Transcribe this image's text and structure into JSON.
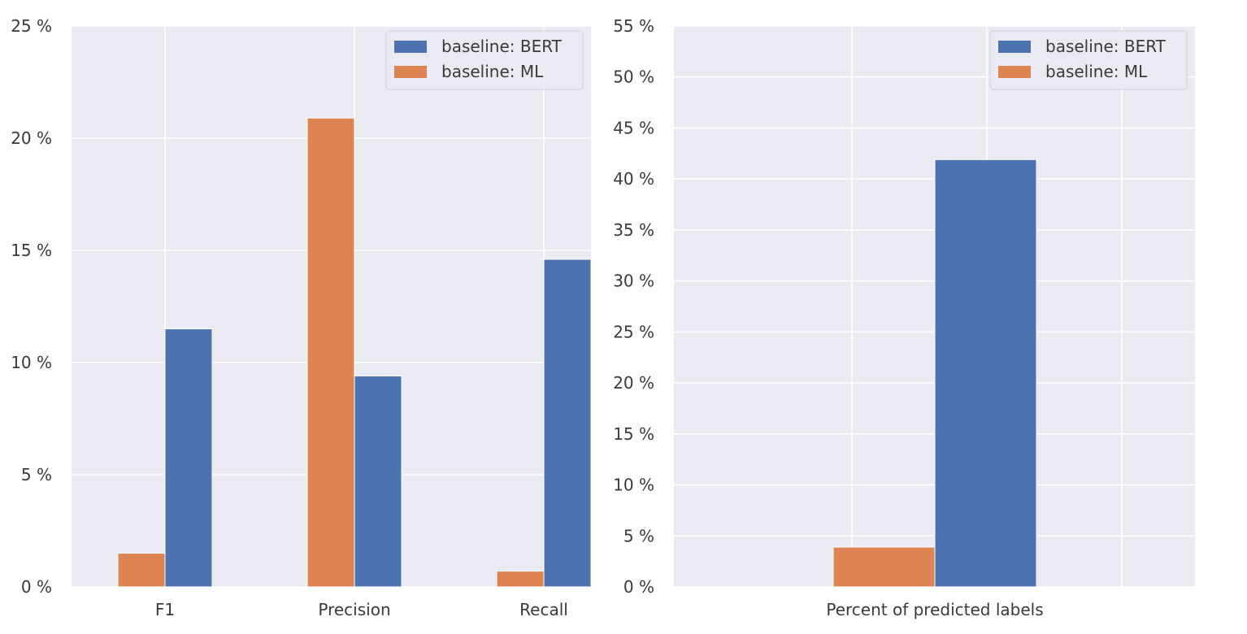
{
  "chart_data": [
    {
      "type": "bar",
      "title": "",
      "xlabel": "",
      "ylabel": "",
      "categories": [
        "F1",
        "Precision",
        "Recall"
      ],
      "series": [
        {
          "name": "baseline: ML",
          "color": "#dd8452",
          "values": [
            1.5,
            20.9,
            0.7
          ]
        },
        {
          "name": "baseline: BERT",
          "color": "#4c72b0",
          "values": [
            11.5,
            9.4,
            14.6
          ]
        }
      ],
      "legend_order": [
        "baseline: BERT",
        "baseline: ML"
      ],
      "ylim": [
        0,
        25
      ],
      "yticks": [
        0,
        5,
        10,
        15,
        20,
        25
      ],
      "ytick_labels": [
        "0 %",
        "5 %",
        "10 %",
        "15 %",
        "20 %",
        "25 %"
      ],
      "grid": true,
      "legend_position": "top-right"
    },
    {
      "type": "bar",
      "title": "",
      "xlabel": "",
      "ylabel": "",
      "categories": [
        "Percent of predicted labels"
      ],
      "series": [
        {
          "name": "baseline: ML",
          "color": "#dd8452",
          "values": [
            3.9
          ]
        },
        {
          "name": "baseline: BERT",
          "color": "#4c72b0",
          "values": [
            41.9
          ]
        }
      ],
      "legend_order": [
        "baseline: BERT",
        "baseline: ML"
      ],
      "ylim": [
        0,
        55
      ],
      "yticks": [
        0,
        5,
        10,
        15,
        20,
        25,
        30,
        35,
        40,
        45,
        50,
        55
      ],
      "ytick_labels": [
        "0 %",
        "5 %",
        "10 %",
        "15 %",
        "20 %",
        "25 %",
        "30 %",
        "35 %",
        "40 %",
        "45 %",
        "50 %",
        "55 %"
      ],
      "grid": true,
      "legend_position": "top-right"
    }
  ]
}
